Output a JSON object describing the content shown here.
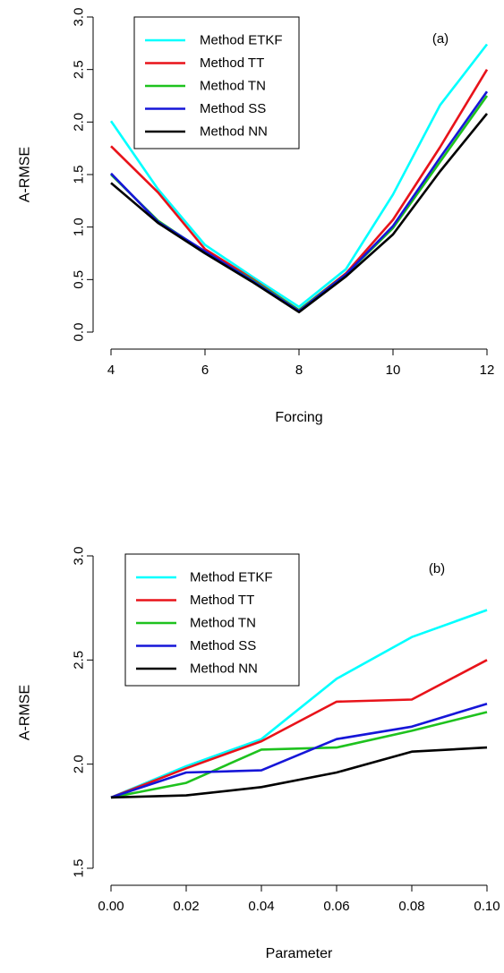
{
  "colors": {
    "Method ETKF": "#00ffff",
    "Method TT": "#e8131a",
    "Method TN": "#1ec21e",
    "Method SS": "#1616d8",
    "Method NN": "#000000"
  },
  "chart_data": [
    {
      "type": "line",
      "panel_tag": "(a)",
      "xlabel": "Forcing",
      "ylabel": "A-RMSE",
      "xlim": [
        4,
        12
      ],
      "ylim": [
        0,
        3
      ],
      "xticks": [
        4,
        6,
        8,
        10,
        12
      ],
      "xtick_labels": [
        "4",
        "6",
        "8",
        "10",
        "12"
      ],
      "yticks": [
        0,
        0.5,
        1,
        1.5,
        2,
        2.5,
        3
      ],
      "ytick_labels": [
        "0.0",
        "0.5",
        "1.0",
        "1.5",
        "2.0",
        "2.5",
        "3.0"
      ],
      "legend_position": "top-left",
      "grid": false,
      "x": [
        4,
        5,
        6,
        7,
        8,
        9,
        10,
        11,
        12
      ],
      "series": [
        {
          "name": "Method ETKF",
          "values": [
            2.01,
            1.36,
            0.83,
            0.53,
            0.24,
            0.6,
            1.31,
            2.16,
            2.74
          ]
        },
        {
          "name": "Method TT",
          "values": [
            1.77,
            1.33,
            0.79,
            0.51,
            0.21,
            0.56,
            1.07,
            1.76,
            2.5
          ]
        },
        {
          "name": "Method TN",
          "values": [
            1.5,
            1.06,
            0.76,
            0.5,
            0.21,
            0.55,
            0.99,
            1.62,
            2.25
          ]
        },
        {
          "name": "Method SS",
          "values": [
            1.51,
            1.05,
            0.77,
            0.49,
            0.2,
            0.55,
            1.01,
            1.66,
            2.29
          ]
        },
        {
          "name": "Method NN",
          "values": [
            1.42,
            1.04,
            0.75,
            0.48,
            0.19,
            0.53,
            0.93,
            1.53,
            2.08
          ]
        }
      ]
    },
    {
      "type": "line",
      "panel_tag": "(b)",
      "xlabel": "Parameter",
      "ylabel": "A-RMSE",
      "xlim": [
        0,
        0.1
      ],
      "ylim": [
        1.5,
        3
      ],
      "xticks": [
        0,
        0.02,
        0.04,
        0.06,
        0.08,
        0.1
      ],
      "xtick_labels": [
        "0.00",
        "0.02",
        "0.04",
        "0.06",
        "0.08",
        "0.10"
      ],
      "yticks": [
        1.5,
        2,
        2.5,
        3
      ],
      "ytick_labels": [
        "1.5",
        "2.0",
        "2.5",
        "3.0"
      ],
      "legend_position": "top-left",
      "grid": false,
      "x": [
        0,
        0.02,
        0.04,
        0.06,
        0.08,
        0.1
      ],
      "series": [
        {
          "name": "Method ETKF",
          "values": [
            1.84,
            1.99,
            2.12,
            2.41,
            2.61,
            2.74
          ]
        },
        {
          "name": "Method TT",
          "values": [
            1.84,
            1.98,
            2.11,
            2.3,
            2.31,
            2.5
          ]
        },
        {
          "name": "Method TN",
          "values": [
            1.84,
            1.91,
            2.07,
            2.08,
            2.16,
            2.25
          ]
        },
        {
          "name": "Method SS",
          "values": [
            1.84,
            1.96,
            1.97,
            2.12,
            2.18,
            2.29
          ]
        },
        {
          "name": "Method NN",
          "values": [
            1.84,
            1.85,
            1.89,
            1.96,
            2.06,
            2.08
          ]
        }
      ]
    }
  ]
}
